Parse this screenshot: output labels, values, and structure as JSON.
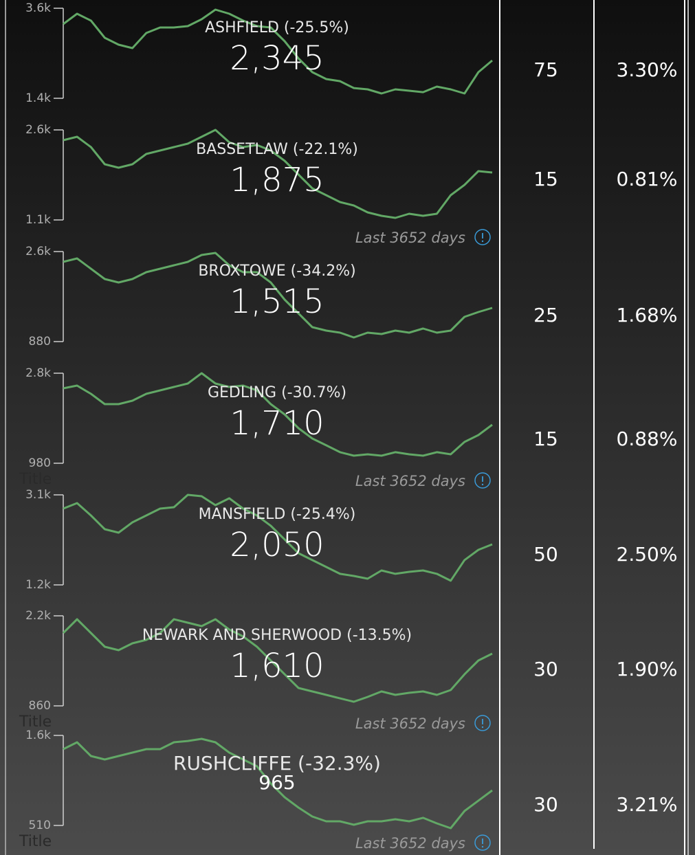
{
  "chart_data": [
    {
      "type": "line",
      "title": "ASHFIELD (-25.5%)",
      "kpi": "2,345",
      "color": "#62a866",
      "ylim": [
        1400,
        3600
      ],
      "yticks": [
        {
          "value": 3600,
          "label": "3.6k"
        },
        {
          "value": 1400,
          "label": "1.4k"
        }
      ],
      "values": [
        3214,
        3466,
        3298,
        2878,
        2710,
        2626,
        2995,
        3130,
        3130,
        3163,
        3331,
        3566,
        3466,
        3298,
        3163,
        3130,
        2794,
        2374,
        2038,
        1870,
        1819,
        1651,
        1618,
        1517,
        1618,
        1584,
        1550,
        1685,
        1618,
        1517,
        2038,
        2323
      ]
    },
    {
      "type": "line",
      "title": "BASSETLAW (-22.1%)",
      "kpi": "1,875",
      "color": "#62a866",
      "footnote": "Last 3652 days",
      "ylim": [
        1100,
        2600
      ],
      "yticks": [
        {
          "value": 2600,
          "label": "2.6k"
        },
        {
          "value": 1100,
          "label": "1.1k"
        }
      ],
      "values": [
        2428,
        2485,
        2314,
        2027,
        1970,
        2027,
        2199,
        2256,
        2314,
        2371,
        2485,
        2600,
        2394,
        2314,
        2348,
        2256,
        2085,
        1856,
        1627,
        1512,
        1398,
        1340,
        1226,
        1169,
        1134,
        1203,
        1169,
        1203,
        1512,
        1684,
        1913,
        1890
      ]
    },
    {
      "type": "line",
      "title": "BROXTOWE (-34.2%)",
      "kpi": "1,515",
      "color": "#62a866",
      "ylim": [
        880,
        2600
      ],
      "yticks": [
        {
          "value": 2600,
          "label": "2.6k"
        },
        880
      ],
      "values": [
        2403,
        2469,
        2272,
        2075,
        2009,
        2075,
        2206,
        2272,
        2337,
        2403,
        2534,
        2574,
        2337,
        2206,
        2206,
        2009,
        1681,
        1418,
        1156,
        1090,
        1051,
        959,
        1051,
        1024,
        1090,
        1051,
        1130,
        1051,
        1090,
        1353,
        1444,
        1523
      ]
    },
    {
      "type": "line",
      "title": "GEDLING (-30.7%)",
      "kpi": "1,710",
      "color": "#62a866",
      "footnote": "Last 3652 days",
      "caption": "Title",
      "ylim": [
        980,
        2800
      ],
      "yticks": [
        {
          "value": 2800,
          "label": "2.8k"
        },
        980
      ],
      "values": [
        2494,
        2550,
        2383,
        2175,
        2175,
        2244,
        2383,
        2453,
        2522,
        2592,
        2800,
        2592,
        2522,
        2550,
        2453,
        2175,
        1967,
        1689,
        1480,
        1342,
        1203,
        1133,
        1161,
        1133,
        1203,
        1161,
        1133,
        1203,
        1161,
        1411,
        1550,
        1758
      ]
    },
    {
      "type": "line",
      "title": "MANSFIELD (-25.4%)",
      "kpi": "2,050",
      "color": "#62a866",
      "ylim": [
        1200,
        3100
      ],
      "yticks": [
        {
          "value": 3100,
          "label": "3.1k"
        },
        {
          "value": 1200,
          "label": "1.2k"
        }
      ],
      "values": [
        2810,
        2926,
        2665,
        2375,
        2303,
        2520,
        2665,
        2810,
        2839,
        3100,
        3071,
        2883,
        3028,
        2810,
        2665,
        2448,
        2158,
        1868,
        1723,
        1578,
        1433,
        1389,
        1331,
        1505,
        1433,
        1476,
        1505,
        1433,
        1288,
        1723,
        1940,
        2056
      ]
    },
    {
      "type": "line",
      "title": "NEWARK AND SHERWOOD (-13.5%)",
      "kpi": "1,610",
      "color": "#62a866",
      "footnote": "Last 3652 days",
      "caption": "Title",
      "ylim": [
        860,
        2200
      ],
      "yticks": [
        {
          "value": 2200,
          "label": "2.2k"
        },
        860
      ],
      "values": [
        1944,
        2149,
        1944,
        1740,
        1689,
        1791,
        1842,
        1944,
        2149,
        2098,
        2047,
        2149,
        1995,
        1893,
        1740,
        1535,
        1330,
        1126,
        1075,
        1024,
        972,
        921,
        993,
        1075,
        1024,
        1054,
        1075,
        1024,
        1095,
        1330,
        1535,
        1637
      ]
    },
    {
      "type": "line",
      "title": "RUSHCLIFFE (-32.3%)",
      "kpi": "965",
      "color": "#62a866",
      "footnote": "Last 3652 days",
      "caption": "Title",
      "ylim": [
        510,
        1600
      ],
      "yticks": [
        {
          "value": 1600,
          "label": "1.6k"
        },
        510
      ],
      "values": [
        1434,
        1517,
        1350,
        1309,
        1350,
        1392,
        1434,
        1434,
        1517,
        1533,
        1558,
        1517,
        1392,
        1309,
        1226,
        1018,
        851,
        726,
        618,
        560,
        560,
        518,
        560,
        560,
        585,
        560,
        602,
        535,
        477,
        685,
        810,
        934
      ]
    }
  ],
  "table": {
    "rows": [
      [
        "75",
        "3.30%"
      ],
      [
        "15",
        "0.81%"
      ],
      [
        "25",
        "1.68%"
      ],
      [
        "15",
        "0.88%"
      ],
      [
        "50",
        "2.50%"
      ],
      [
        "30",
        "1.90%"
      ],
      [
        "30",
        "3.21%"
      ]
    ]
  }
}
